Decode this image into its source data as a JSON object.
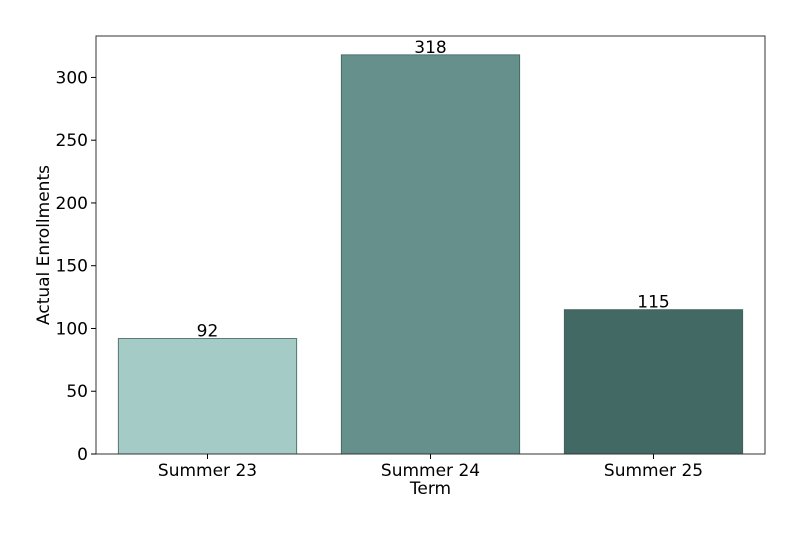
{
  "chart_data": {
    "type": "bar",
    "categories": [
      "Summer 23",
      "Summer 24",
      "Summer 25"
    ],
    "values": [
      92,
      318,
      115
    ],
    "data_labels": [
      "92",
      "318",
      "115"
    ],
    "bar_colors": [
      "#a5cbc7",
      "#66908b",
      "#426964"
    ],
    "xlabel": "Term",
    "ylabel": "Actual Enrollments",
    "ylim": [
      0,
      333
    ],
    "yticks": [
      0,
      50,
      100,
      150,
      200,
      250,
      300
    ],
    "ytick_labels": [
      "0",
      "50",
      "100",
      "150",
      "200",
      "250",
      "300"
    ],
    "grid": false,
    "legend": false
  }
}
